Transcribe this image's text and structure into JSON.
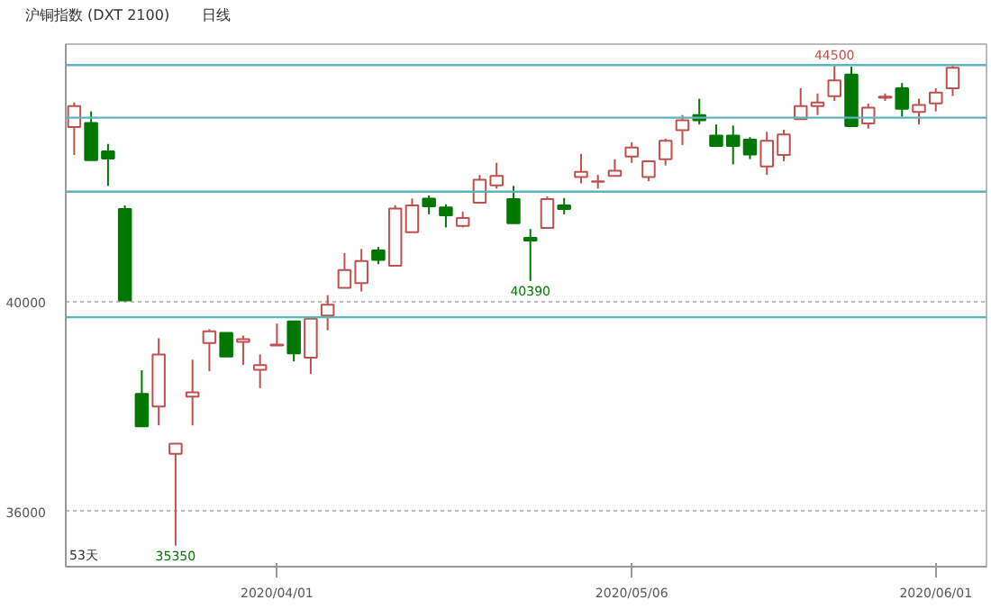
{
  "chart_data": {
    "type": "candlestick",
    "title": "沪铜指数 (DXT 2100)",
    "subtitle": "日线",
    "categories": [
      null,
      null,
      null,
      null,
      null,
      null,
      null,
      null,
      null,
      null,
      null,
      null,
      "2020/04/01",
      null,
      null,
      null,
      null,
      null,
      null,
      null,
      null,
      null,
      null,
      null,
      null,
      null,
      null,
      null,
      null,
      null,
      null,
      null,
      null,
      "2020/05/06",
      null,
      null,
      null,
      null,
      null,
      null,
      null,
      null,
      null,
      null,
      null,
      null,
      null,
      null,
      null,
      null,
      null,
      "2020/06/01",
      null
    ],
    "ohlc": [
      [
        43320,
        43790,
        42790,
        43720
      ],
      [
        43400,
        43620,
        42690,
        42690
      ],
      [
        42860,
        43000,
        42200,
        42720
      ],
      [
        41760,
        41830,
        40020,
        40020
      ],
      [
        38240,
        38690,
        37620,
        37620
      ],
      [
        38000,
        39300,
        37640,
        38990
      ],
      [
        37100,
        37290,
        35350,
        37290
      ],
      [
        38190,
        38890,
        37640,
        38270
      ],
      [
        39210,
        39470,
        38670,
        39430
      ],
      [
        39400,
        39400,
        38950,
        38950
      ],
      [
        39230,
        39350,
        38790,
        39280
      ],
      [
        38700,
        38990,
        38350,
        38790
      ],
      [
        39160,
        39580,
        39160,
        39180
      ],
      [
        39620,
        39620,
        38860,
        39010
      ],
      [
        38930,
        39670,
        38620,
        39670
      ],
      [
        39730,
        40120,
        39450,
        39940
      ],
      [
        40260,
        40920,
        40260,
        40600
      ],
      [
        40350,
        41000,
        40190,
        40770
      ],
      [
        40970,
        41040,
        40710,
        40790
      ],
      [
        40680,
        41830,
        40680,
        41770
      ],
      [
        41320,
        41960,
        41320,
        41830
      ],
      [
        41960,
        42020,
        41660,
        41810
      ],
      [
        41790,
        41850,
        41410,
        41640
      ],
      [
        41440,
        41710,
        41410,
        41590
      ],
      [
        41880,
        42410,
        41880,
        42320
      ],
      [
        42210,
        42640,
        42150,
        42390
      ],
      [
        41950,
        42200,
        41490,
        41490
      ],
      [
        41210,
        41380,
        40390,
        41160
      ],
      [
        41400,
        42000,
        41400,
        41950
      ],
      [
        41830,
        41970,
        41660,
        41760
      ],
      [
        42370,
        42810,
        42250,
        42470
      ],
      [
        42280,
        42410,
        42150,
        42290
      ],
      [
        42390,
        42710,
        42390,
        42490
      ],
      [
        42760,
        43030,
        42640,
        42930
      ],
      [
        42370,
        42670,
        42290,
        42670
      ],
      [
        42710,
        43100,
        42590,
        43060
      ],
      [
        43260,
        43550,
        42980,
        43450
      ],
      [
        43550,
        43860,
        43370,
        43450
      ],
      [
        43160,
        43370,
        42960,
        42960
      ],
      [
        43160,
        43350,
        42610,
        42960
      ],
      [
        43080,
        43130,
        42710,
        42800
      ],
      [
        42570,
        43230,
        42410,
        43060
      ],
      [
        42790,
        43270,
        42670,
        43180
      ],
      [
        43470,
        44060,
        43470,
        43720
      ],
      [
        43720,
        43960,
        43550,
        43790
      ],
      [
        43910,
        44500,
        43820,
        44210
      ],
      [
        44320,
        44470,
        43340,
        43340
      ],
      [
        43390,
        43770,
        43290,
        43690
      ],
      [
        43880,
        43960,
        43820,
        43900
      ],
      [
        44060,
        44160,
        43520,
        43670
      ],
      [
        43610,
        43860,
        43370,
        43740
      ],
      [
        43770,
        44060,
        43620,
        43980
      ],
      [
        44060,
        44500,
        43910,
        44450
      ]
    ],
    "ylim": [
      34950,
      44900
    ],
    "yticks": [
      36000,
      40000
    ],
    "grid": "y",
    "colors": [
      "#c0504d",
      "#007800",
      "#007800",
      "#007800",
      "#007800",
      "#c0504d",
      "#c0504d",
      "#c0504d",
      "#c0504d",
      "#007800",
      "#c0504d",
      "#c0504d",
      "#c0504d",
      "#007800",
      "#c0504d",
      "#c0504d",
      "#c0504d",
      "#c0504d",
      "#007800",
      "#c0504d",
      "#c0504d",
      "#007800",
      "#007800",
      "#c0504d",
      "#c0504d",
      "#c0504d",
      "#007800",
      "#007800",
      "#c0504d",
      "#007800",
      "#c0504d",
      "#c0504d",
      "#c0504d",
      "#c0504d",
      "#c0504d",
      "#c0504d",
      "#c0504d",
      "#007800",
      "#007800",
      "#007800",
      "#007800",
      "#c0504d",
      "#c0504d",
      "#c0504d",
      "#c0504d",
      "#c0504d",
      "#007800",
      "#c0504d",
      "#c0504d",
      "#007800",
      "#c0504d",
      "#c0504d",
      "#c0504d"
    ],
    "ref_lines": [
      {
        "axis": "y",
        "value": 39700,
        "color": "#5fb3bb"
      },
      {
        "axis": "y",
        "value": 42090,
        "color": "#5fb3bb"
      },
      {
        "axis": "y",
        "value": 43500,
        "color": "#5fb3bb"
      },
      {
        "axis": "y",
        "value": 44500,
        "color": "#5fb3bb"
      }
    ],
    "annotations": [
      {
        "text": "44500",
        "y": 44500
      },
      {
        "text": "40390",
        "y": 40390
      },
      {
        "text": "35350",
        "y": 35350
      },
      "53天"
    ]
  }
}
